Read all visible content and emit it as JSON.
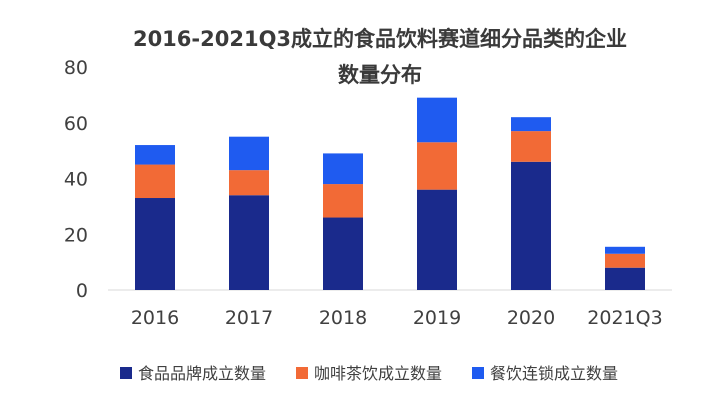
{
  "chart_data": {
    "type": "bar",
    "stacked": true,
    "title": "2016-2021Q3成立的食品饮料赛道细分品类的企业",
    "subtitle": "数量分布",
    "categories": [
      "2016",
      "2017",
      "2018",
      "2019",
      "2020",
      "2021Q3"
    ],
    "ylim": [
      0,
      80
    ],
    "yticks": [
      0,
      20,
      40,
      60,
      80
    ],
    "grid": false,
    "legend_position": "bottom",
    "series": [
      {
        "name": "食品品牌成立数量",
        "color": "#1a2a8c",
        "values": [
          33,
          34,
          26,
          36,
          46,
          8
        ]
      },
      {
        "name": "咖啡茶饮成立数量",
        "color": "#f26a36",
        "values": [
          12,
          9,
          12,
          17,
          11,
          5
        ]
      },
      {
        "name": "餐饮连锁成立数量",
        "color": "#1f5bf0",
        "values": [
          7,
          12,
          11,
          16,
          5,
          2.5
        ]
      }
    ]
  }
}
